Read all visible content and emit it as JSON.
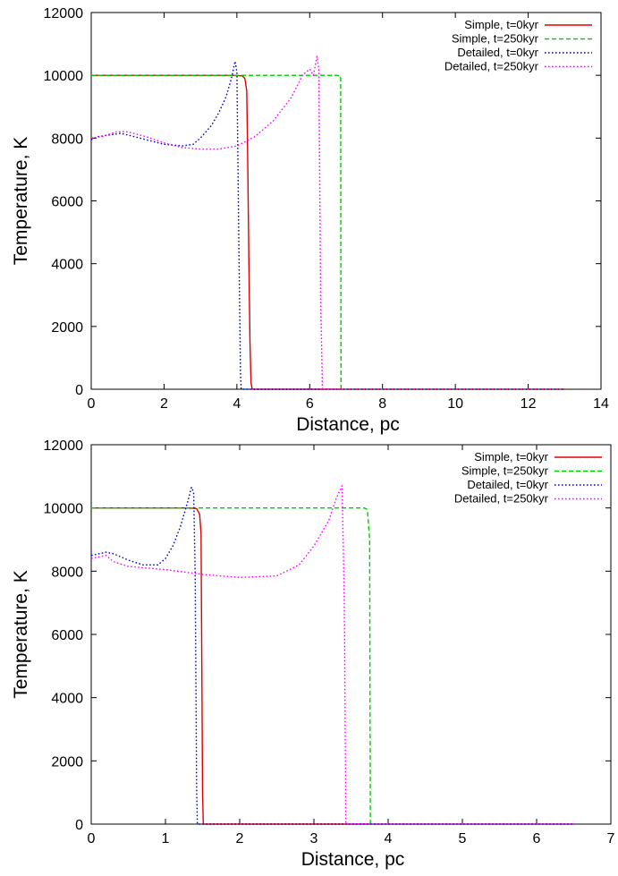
{
  "chart_data": [
    {
      "type": "line",
      "title": "",
      "xlabel": "Distance, pc",
      "ylabel": "Temperature, K",
      "xlim": [
        0,
        14
      ],
      "ylim": [
        0,
        12000
      ],
      "xticks": [
        0,
        2,
        4,
        6,
        8,
        10,
        12,
        14
      ],
      "yticks": [
        0,
        2000,
        4000,
        6000,
        8000,
        10000,
        12000
      ],
      "grid": false,
      "legend_position": "top-right",
      "series": [
        {
          "name": "Simple, t=0kyr",
          "color": "#e00000",
          "style": "solid",
          "x": [
            0,
            3.0,
            4.0,
            4.15,
            4.22,
            4.27,
            4.3,
            4.33,
            4.36,
            4.39,
            4.42,
            13.0
          ],
          "y": [
            10000,
            10000,
            10000,
            9980,
            9900,
            9500,
            7000,
            4000,
            1500,
            200,
            0,
            0
          ]
        },
        {
          "name": "Simple, t=250kyr",
          "color": "#00cc00",
          "style": "dashed",
          "x": [
            0,
            6.75,
            6.85,
            6.86,
            13.0
          ],
          "y": [
            10000,
            10000,
            9980,
            0,
            0
          ]
        },
        {
          "name": "Detailed, t=0kyr",
          "color": "#0000dd",
          "style": "dotted",
          "x": [
            0,
            0.2,
            0.5,
            0.8,
            1.0,
            1.5,
            2.0,
            2.5,
            2.8,
            3.0,
            3.3,
            3.5,
            3.7,
            3.85,
            3.95,
            4.0,
            4.05,
            4.1,
            4.12,
            13.0
          ],
          "y": [
            7950,
            8050,
            8100,
            8150,
            8100,
            7950,
            7800,
            7750,
            7800,
            8000,
            8400,
            8800,
            9300,
            9900,
            10450,
            10100,
            5000,
            500,
            0,
            0
          ]
        },
        {
          "name": "Detailed, t=250kyr",
          "color": "#ff00ff",
          "style": "dotted",
          "x": [
            0,
            0.3,
            0.7,
            1.0,
            1.5,
            2.0,
            2.5,
            3.0,
            3.5,
            4.0,
            4.5,
            5.0,
            5.5,
            5.8,
            6.0,
            6.1,
            6.2,
            6.25,
            6.3,
            6.35,
            13.0
          ],
          "y": [
            8000,
            8050,
            8200,
            8200,
            8050,
            7850,
            7700,
            7650,
            7650,
            7750,
            8050,
            8550,
            9300,
            10000,
            10200,
            10000,
            10600,
            10200,
            3000,
            0,
            0
          ]
        }
      ]
    },
    {
      "type": "line",
      "title": "",
      "xlabel": "Distance, pc",
      "ylabel": "Temperature, K",
      "xlim": [
        0,
        7
      ],
      "ylim": [
        0,
        12000
      ],
      "xticks": [
        0,
        1,
        2,
        3,
        4,
        5,
        6,
        7
      ],
      "yticks": [
        0,
        2000,
        4000,
        6000,
        8000,
        10000,
        12000
      ],
      "grid": false,
      "legend_position": "top-right",
      "series": [
        {
          "name": "Simple, t=0kyr",
          "color": "#e00000",
          "style": "solid",
          "x": [
            0,
            1.3,
            1.42,
            1.46,
            1.48,
            1.5,
            1.51,
            6.5
          ],
          "y": [
            10000,
            10000,
            9980,
            9800,
            9200,
            1000,
            0,
            0
          ]
        },
        {
          "name": "Simple, t=250kyr",
          "color": "#00cc00",
          "style": "dashed",
          "x": [
            0,
            3.68,
            3.72,
            3.75,
            3.76,
            6.5
          ],
          "y": [
            10000,
            10000,
            9950,
            9000,
            0,
            0
          ]
        },
        {
          "name": "Detailed, t=0kyr",
          "color": "#0000dd",
          "style": "dotted",
          "x": [
            0,
            0.1,
            0.2,
            0.3,
            0.5,
            0.7,
            0.9,
            1.0,
            1.1,
            1.2,
            1.3,
            1.35,
            1.38,
            1.4,
            1.42,
            1.43,
            6.5
          ],
          "y": [
            8500,
            8550,
            8600,
            8550,
            8350,
            8200,
            8200,
            8400,
            8800,
            9400,
            10200,
            10650,
            10500,
            8000,
            1000,
            0,
            0
          ]
        },
        {
          "name": "Detailed, t=250kyr",
          "color": "#ff00ff",
          "style": "dotted",
          "x": [
            0,
            0.2,
            0.3,
            0.5,
            1.0,
            1.5,
            2.0,
            2.5,
            2.8,
            3.0,
            3.2,
            3.3,
            3.38,
            3.41,
            3.43,
            6.5
          ],
          "y": [
            8400,
            8500,
            8300,
            8150,
            8050,
            7900,
            7800,
            7850,
            8200,
            8800,
            9600,
            10300,
            10700,
            7000,
            0,
            0
          ]
        }
      ]
    }
  ]
}
